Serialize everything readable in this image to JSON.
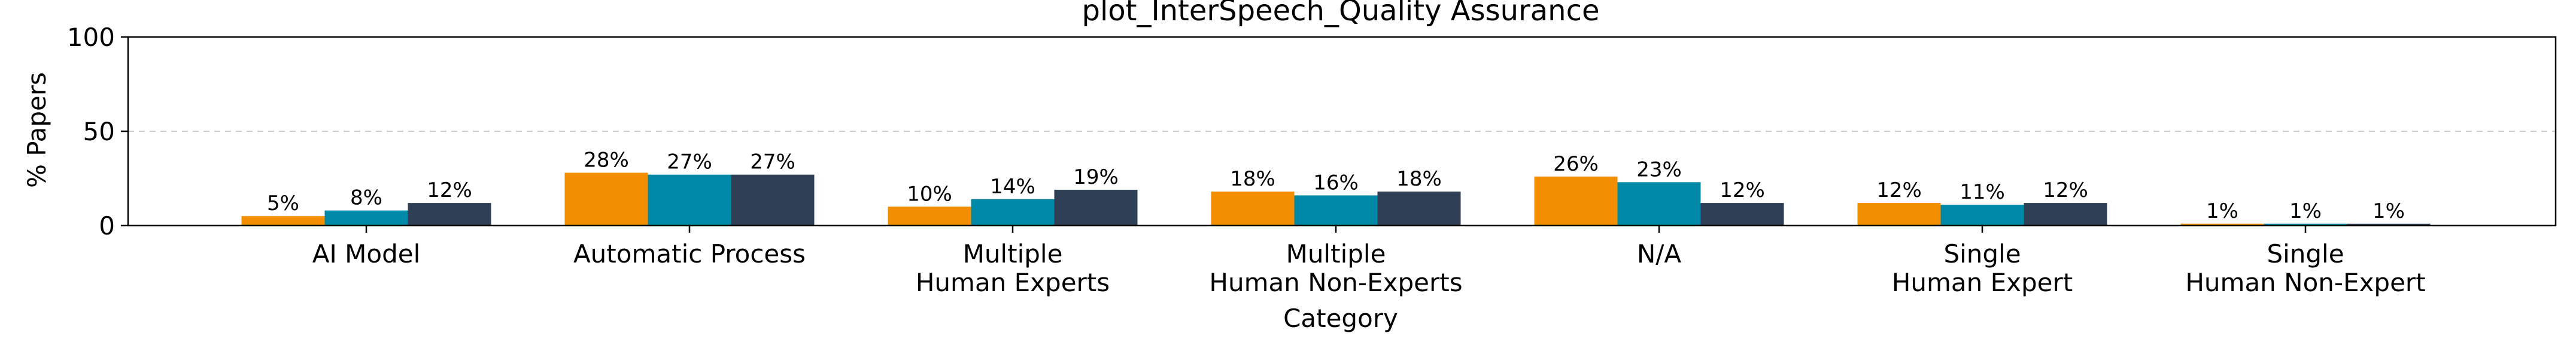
{
  "chart_data": {
    "type": "bar",
    "title": "plot_InterSpeech_Quality Assurance",
    "xlabel": "Category",
    "ylabel": "% Papers",
    "ylim": [
      0,
      100
    ],
    "yticks": [
      0,
      50,
      100
    ],
    "grid_y": true,
    "legend": "none",
    "categories": [
      [
        "AI Model"
      ],
      [
        "Automatic Process"
      ],
      [
        "Multiple",
        "Human Experts"
      ],
      [
        "Multiple",
        "Human Non-Experts"
      ],
      [
        "N/A"
      ],
      [
        "Single",
        "Human Expert"
      ],
      [
        "Single",
        "Human Non-Expert"
      ]
    ],
    "series": [
      {
        "color": "#F28E00",
        "values": [
          5,
          28,
          10,
          18,
          26,
          12,
          1
        ],
        "labels": [
          "5%",
          "28%",
          "10%",
          "18%",
          "26%",
          "12%",
          "1%"
        ]
      },
      {
        "color": "#0089A7",
        "values": [
          8,
          27,
          14,
          16,
          23,
          11,
          1
        ],
        "labels": [
          "8%",
          "27%",
          "14%",
          "16%",
          "23%",
          "11%",
          "1%"
        ]
      },
      {
        "color": "#2E3F56",
        "values": [
          12,
          27,
          19,
          18,
          12,
          12,
          1
        ],
        "labels": [
          "12%",
          "27%",
          "19%",
          "18%",
          "12%",
          "12%",
          "1%"
        ]
      }
    ]
  }
}
